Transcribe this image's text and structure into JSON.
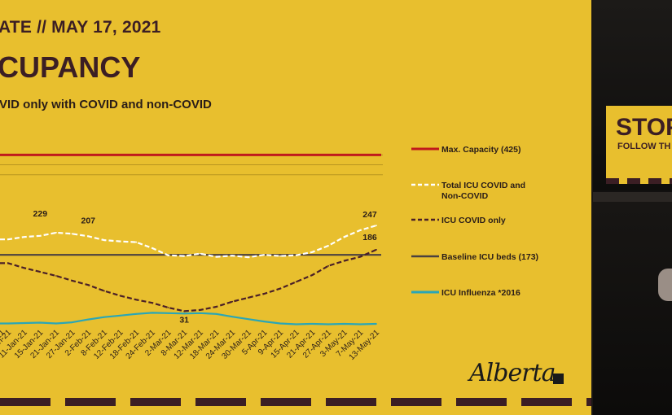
{
  "slide": {
    "header_line": "ATE // MAY 17, 2021",
    "title": "CUPANCY",
    "subtitle": "VID only with COVID and non-COVID",
    "logo_text": "Alberta",
    "colors": {
      "background": "#e8bf2e",
      "brand_dark": "#3b1e24"
    }
  },
  "webcam": {
    "sign_text": "STOP",
    "sign_subtext": "FOLLOW TH"
  },
  "chart_data": {
    "type": "line",
    "x_labels": [
      "7-Jan-21",
      "11-Jan-21",
      "15-Jan-21",
      "21-Jan-21",
      "27-Jan-21",
      "2-Feb-21",
      "8-Feb-21",
      "12-Feb-21",
      "18-Feb-21",
      "24-Feb-21",
      "2-Mar-21",
      "8-Mar-21",
      "12-Mar-21",
      "18-Mar-21",
      "24-Mar-21",
      "30-Mar-21",
      "5-Apr-21",
      "9-Apr-21",
      "15-Apr-21",
      "21-Apr-21",
      "27-Apr-21",
      "3-May-21",
      "7-May-21",
      "13-May-21"
    ],
    "edge_tick_label": "1-Jan-21",
    "lines": [
      {
        "name": "Max. Capacity (425)",
        "color": "#c0191c",
        "style": "solid",
        "constant": 425
      },
      {
        "name": "Baseline ICU beds (173)",
        "color": "#4a4040",
        "style": "solid",
        "constant": 173
      }
    ],
    "series": [
      {
        "name": "Total ICU COVID and Non-COVID",
        "color": "#ffffff",
        "style": "dashed",
        "values": [
          212,
          218,
          221,
          229,
          226,
          220,
          210,
          207,
          205,
          190,
          172,
          170,
          176,
          168,
          171,
          167,
          173,
          170,
          172,
          180,
          196,
          218,
          235,
          247
        ]
      },
      {
        "name": "ICU COVID only",
        "color": "#4a1f28",
        "style": "dashed",
        "values": [
          152,
          140,
          130,
          120,
          108,
          97,
          82,
          70,
          60,
          52,
          40,
          31,
          34,
          42,
          55,
          65,
          75,
          88,
          105,
          122,
          145,
          158,
          168,
          186
        ]
      },
      {
        "name": "ICU Influenza *2016",
        "color": "#2aa6b6",
        "style": "solid",
        "values": [
          0,
          1,
          2,
          0,
          3,
          10,
          16,
          20,
          24,
          27,
          26,
          25,
          26,
          24,
          17,
          11,
          5,
          0,
          -2,
          -1,
          -2,
          -1,
          -2,
          -1
        ]
      }
    ],
    "annotations": [
      {
        "text": "229",
        "x": "15-Jan-21",
        "y": 229
      },
      {
        "text": "207",
        "x": "2-Feb-21",
        "y": 207
      },
      {
        "text": "31",
        "x": "8-Mar-21",
        "y": 31
      },
      {
        "text": "247",
        "x": "13-May-21",
        "y": 247
      },
      {
        "text": "186",
        "x": "13-May-21",
        "y": 186
      }
    ],
    "ylim": [
      -10,
      440
    ],
    "grid": true,
    "legend_position": "right"
  }
}
